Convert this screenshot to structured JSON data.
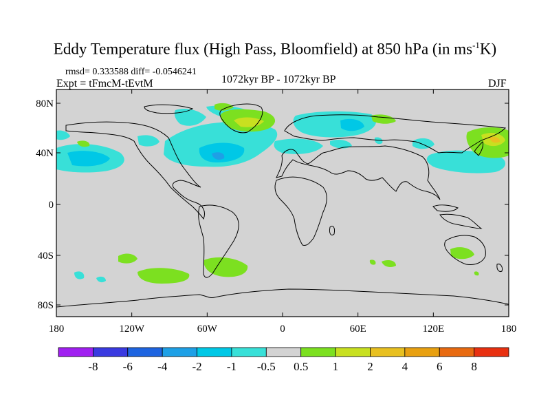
{
  "title": {
    "main": "Eddy Temperature flux (High Pass, Bloomfield) at 850 hPa (in ms",
    "sup": "-1",
    "tail": "K)"
  },
  "stats": "rmsd= 0.333588 diff= -0.0546241",
  "expt": "Expt = tFmcM-tEvtM",
  "period": "1072kyr BP - 1072kyr BP",
  "season": "DJF",
  "axes": {
    "lat_ticks": [
      "80N",
      "40N",
      "0",
      "40S",
      "80S"
    ],
    "lon_ticks": [
      "180",
      "120W",
      "60W",
      "0",
      "60E",
      "120E",
      "180"
    ]
  },
  "colorbar": {
    "colors": [
      "#a020f0",
      "#3a3ae0",
      "#1e64e0",
      "#1ea0e6",
      "#00c8e6",
      "#38e0d8",
      "#d3d3d3",
      "#7ce020",
      "#c8e020",
      "#e8c020",
      "#e8a010",
      "#e86a10",
      "#e83010"
    ],
    "labels": [
      "-8",
      "-6",
      "-4",
      "-2",
      "-1",
      "-0.5",
      "0.5",
      "1",
      "2",
      "4",
      "6",
      "8"
    ]
  },
  "colors": {
    "background_land_ocean": "#d3d3d3",
    "light_negative": "#38e0d8",
    "mid_negative": "#00c8e6",
    "strong_negative": "#1ea0e6",
    "light_positive": "#7ce020",
    "positive_2": "#c8e020",
    "positive_4": "#e8c020"
  }
}
